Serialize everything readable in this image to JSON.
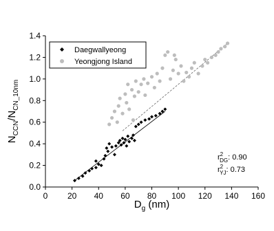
{
  "chart_data": {
    "type": "scatter",
    "x_label": [
      "D",
      "g",
      " (nm)"
    ],
    "y_label": [
      "N",
      "CCN",
      "/N",
      "CN_10nm"
    ],
    "xlim": [
      0,
      160
    ],
    "xticks": [
      0,
      20,
      40,
      60,
      80,
      100,
      120,
      140,
      160
    ],
    "ylim": [
      0,
      1.4
    ],
    "yticks": [
      {
        "value": 0,
        "label": "0.0"
      },
      {
        "value": 0.2,
        "label": "0.2"
      },
      {
        "value": 0.4,
        "label": "0.4"
      },
      {
        "value": 0.6,
        "label": "0.6"
      },
      {
        "value": 0.8,
        "label": "0.8"
      },
      {
        "value": 1.0,
        "label": "1.0"
      },
      {
        "value": 1.2,
        "label": "1.2"
      },
      {
        "value": 1.4,
        "label": "1.4"
      }
    ],
    "legend": "upper left",
    "series": [
      {
        "name": "Daegwallyeong",
        "color": "#000000",
        "marker": "diamond",
        "x": [
          22,
          25,
          28,
          30,
          33,
          35,
          38,
          40,
          42,
          44,
          45,
          47,
          48,
          50,
          52,
          53,
          55,
          56,
          57,
          58,
          59,
          60,
          61,
          62,
          63,
          65,
          66,
          67,
          68,
          70,
          72,
          75,
          78,
          80,
          83,
          86,
          88,
          90,
          38,
          46
        ],
        "values": [
          0.06,
          0.08,
          0.1,
          0.13,
          0.15,
          0.17,
          0.18,
          0.21,
          0.2,
          0.26,
          0.29,
          0.33,
          0.4,
          0.37,
          0.3,
          0.38,
          0.41,
          0.43,
          0.39,
          0.45,
          0.41,
          0.44,
          0.38,
          0.47,
          0.42,
          0.45,
          0.48,
          0.43,
          0.56,
          0.58,
          0.6,
          0.62,
          0.63,
          0.65,
          0.66,
          0.68,
          0.7,
          0.72,
          0.24,
          0.36
        ],
        "fit": {
          "x": [
            22,
            90
          ],
          "y": [
            0.06,
            0.7
          ]
        }
      },
      {
        "name": "Yeongjong Island",
        "color": "#bdbdbd",
        "marker": "circle",
        "x": [
          48,
          50,
          52,
          54,
          55,
          56,
          58,
          60,
          61,
          62,
          63,
          65,
          67,
          68,
          70,
          72,
          74,
          75,
          77,
          80,
          82,
          84,
          86,
          88,
          90,
          92,
          94,
          96,
          98,
          100,
          102,
          104,
          106,
          108,
          110,
          112,
          115,
          118,
          120,
          122,
          125,
          128,
          130,
          132,
          135,
          137,
          97,
          66
        ],
        "values": [
          0.58,
          0.64,
          0.7,
          0.6,
          0.75,
          0.82,
          0.68,
          0.86,
          0.78,
          0.95,
          0.72,
          0.9,
          0.84,
          0.98,
          0.88,
          0.95,
          1.0,
          0.85,
          0.96,
          1.02,
          0.92,
          1.05,
          0.98,
          1.1,
          1.22,
          1.25,
          1.0,
          1.08,
          1.18,
          1.05,
          1.12,
          0.98,
          1.06,
          1.02,
          1.1,
          1.15,
          1.05,
          1.12,
          1.18,
          1.15,
          1.2,
          1.22,
          1.25,
          1.28,
          1.3,
          1.33,
          1.22,
          0.62
        ],
        "fit": {
          "x": [
            58,
            137
          ],
          "y": [
            0.52,
            1.33
          ]
        }
      }
    ],
    "annotations": [
      {
        "base": "r",
        "sup": "2",
        "sub": "DG",
        "text": ": 0.90"
      },
      {
        "base": "r",
        "sup": "2",
        "sub": "YJ",
        "text": ": 0.73"
      }
    ]
  }
}
